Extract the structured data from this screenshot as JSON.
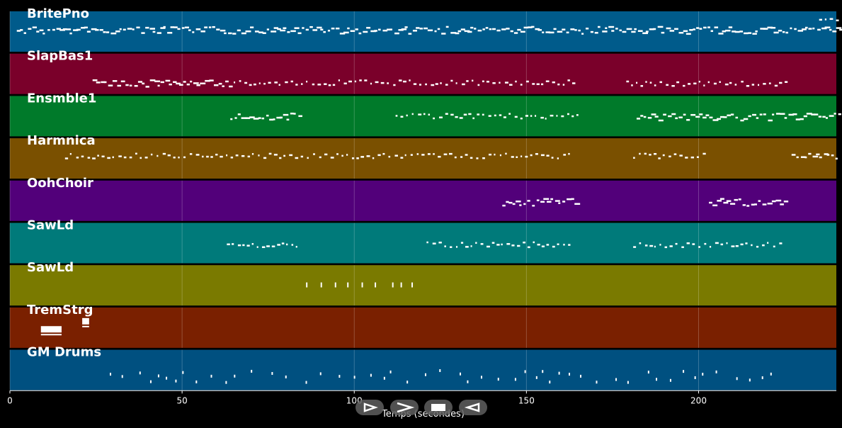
{
  "x_axis": {
    "label": "Temps (secondes)",
    "min": 0,
    "max": 240,
    "ticks": [
      0,
      50,
      100,
      150,
      200
    ]
  },
  "tracks": [
    {
      "name": "BritePno",
      "color": "#005b8b",
      "notes": [
        [
          2,
          241,
          0.45,
          "dense"
        ],
        [
          235,
          240,
          0.15,
          "sparse"
        ]
      ]
    },
    {
      "name": "SlapBas1",
      "color": "#7a002a",
      "notes": [
        [
          24,
          64,
          0.72,
          "dense"
        ],
        [
          65,
          164,
          0.7,
          "sparse"
        ],
        [
          179,
          225,
          0.72,
          "sparse"
        ]
      ]
    },
    {
      "name": "Ensmble1",
      "color": "#007a2a",
      "notes": [
        [
          64,
          84,
          0.5,
          "dense"
        ],
        [
          112,
          166,
          0.48,
          "sparse"
        ],
        [
          182,
          241,
          0.5,
          "dense"
        ]
      ]
    },
    {
      "name": "Harmnica",
      "color": "#7a5000",
      "notes": [
        [
          16,
          163,
          0.42,
          "sparse"
        ],
        [
          181,
          202,
          0.42,
          "sparse"
        ],
        [
          227,
          240,
          0.45,
          "dense"
        ]
      ]
    },
    {
      "name": "OohChoir",
      "color": "#52007a",
      "notes": [
        [
          143,
          164,
          0.52,
          "dense"
        ],
        [
          203,
          225,
          0.52,
          "dense"
        ]
      ]
    },
    {
      "name": "SawLd",
      "color": "#007a7a",
      "notes": [
        [
          63,
          84,
          0.52,
          "sparse"
        ],
        [
          121,
          163,
          0.52,
          "sparse"
        ],
        [
          181,
          224,
          0.52,
          "sparse"
        ]
      ]
    },
    {
      "name": "SawLd",
      "color": "#7a7a00",
      "notes": [
        [
          86,
          120,
          0.48,
          "hits"
        ]
      ]
    },
    {
      "name": "TremStrg",
      "color": "#7a2000",
      "notes": [
        [
          9,
          15,
          0.55,
          "block"
        ],
        [
          21,
          23,
          0.35,
          "block"
        ]
      ]
    },
    {
      "name": "GM Drums",
      "color": "#005080",
      "notes": [
        [
          29,
          221,
          0.6,
          "drums"
        ]
      ]
    }
  ],
  "controls": [
    {
      "label": "play",
      "icon": "play-icon"
    },
    {
      "label": "forward",
      "icon": "forward-icon"
    },
    {
      "label": "stop",
      "icon": "stop-icon"
    },
    {
      "label": "back",
      "icon": "back-icon"
    }
  ]
}
